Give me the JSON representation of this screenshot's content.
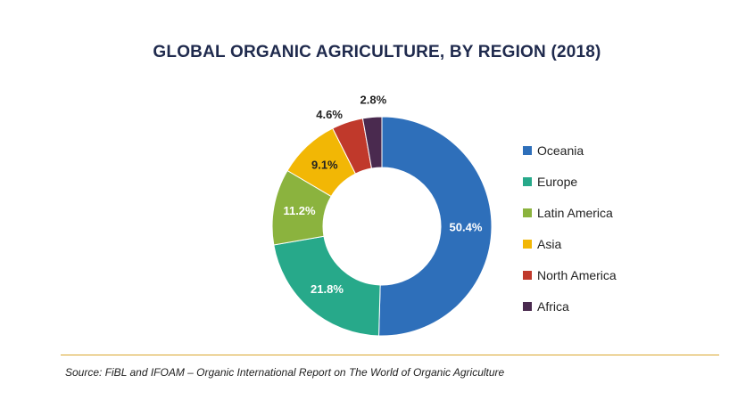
{
  "chart_data": {
    "type": "pie",
    "title": "GLOBAL ORGANIC AGRICULTURE, BY REGION (2018)",
    "donut": true,
    "categories": [
      "Oceania",
      "Europe",
      "Latin America",
      "Asia",
      "North America",
      "Africa"
    ],
    "values": [
      50.4,
      21.8,
      11.2,
      9.1,
      4.6,
      2.8
    ],
    "labels": [
      "50.4%",
      "21.8%",
      "11.2%",
      "9.1%",
      "4.6%",
      "2.8%"
    ],
    "colors": [
      "#2e6fba",
      "#27a98a",
      "#8bb33e",
      "#f2b705",
      "#c0392b",
      "#4a2a4f"
    ],
    "legend_position": "right"
  },
  "source": "Source: FiBL and IFOAM – Organic International Report on The World of Organic Agriculture",
  "colors": {
    "title": "#1f2a4d",
    "divider": "#d9a62e"
  }
}
